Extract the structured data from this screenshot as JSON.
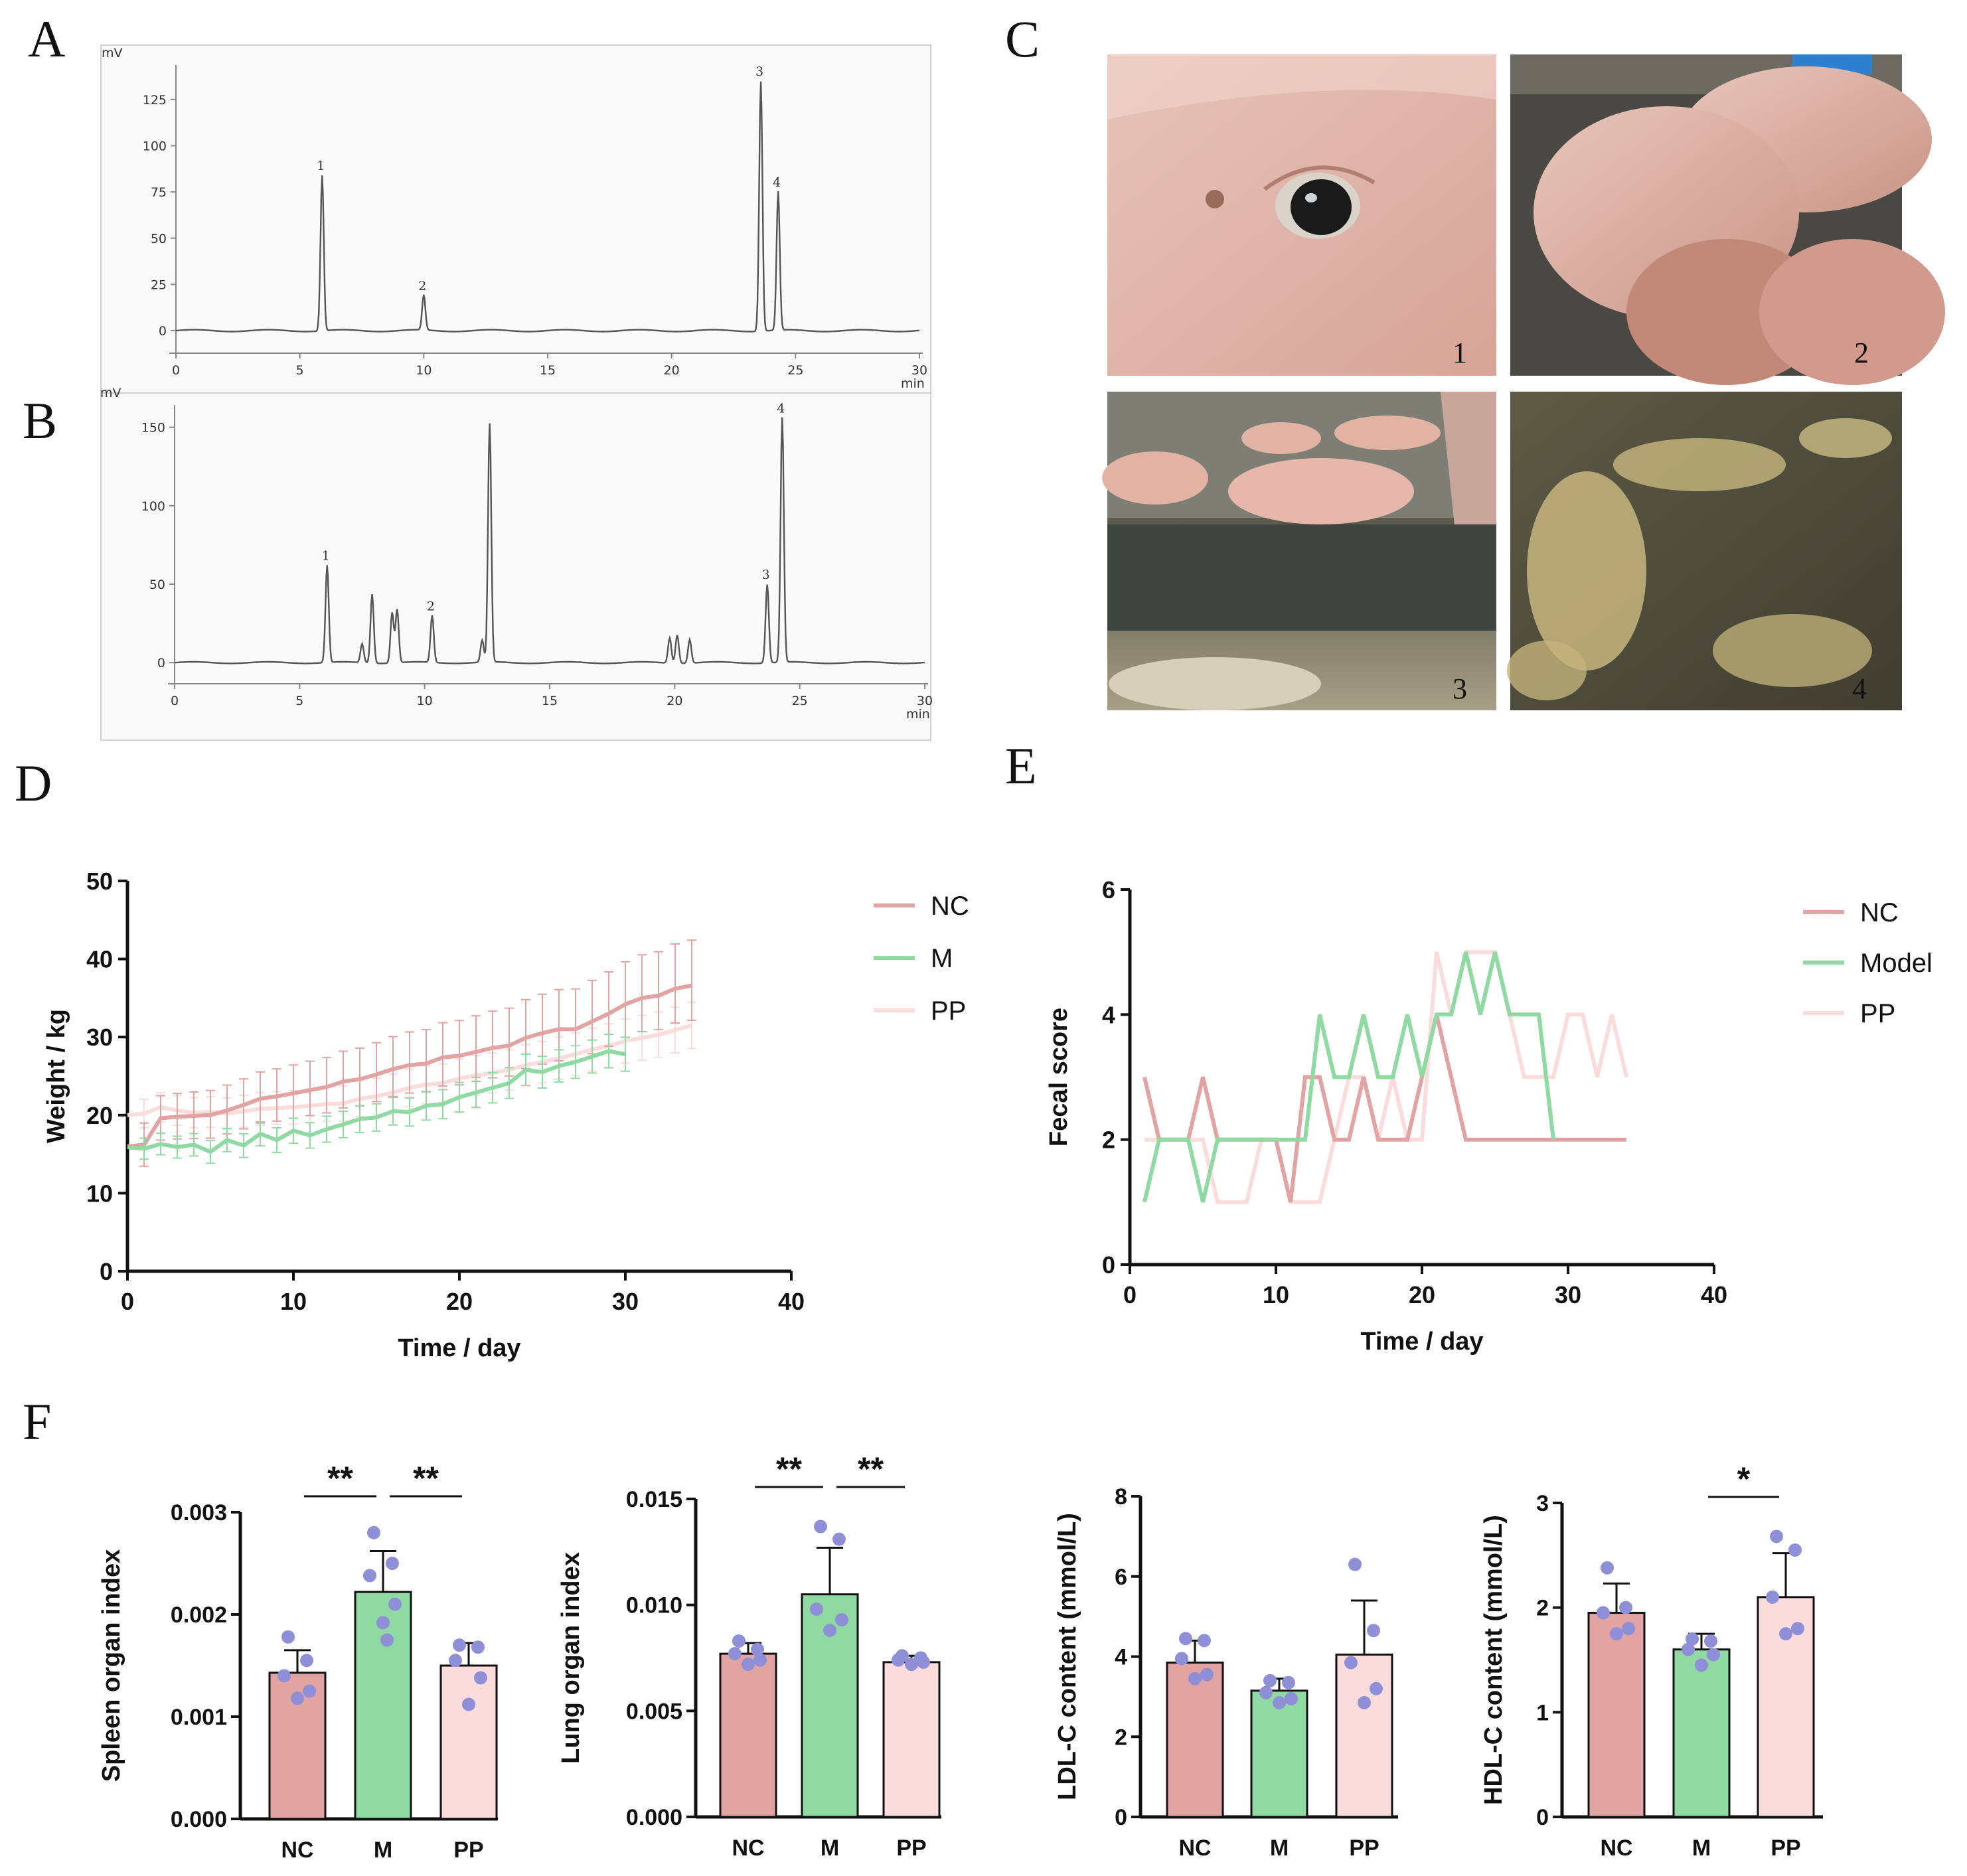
{
  "panels": {
    "A": "A",
    "B": "B",
    "C": "C",
    "D": "D",
    "E": "E",
    "F": "F"
  },
  "colors": {
    "NC": "#e2a3a3",
    "M": "#8fd9a3",
    "PP": "#fbdcdc",
    "dots": "#8f8fd8",
    "chrom": "#555555"
  },
  "photos": [
    {
      "label": "1",
      "description": "close-up of pig eye"
    },
    {
      "label": "2",
      "description": "pigs in pen"
    },
    {
      "label": "3",
      "description": "pigs lying in pen"
    },
    {
      "label": "4",
      "description": "feces on floor"
    }
  ],
  "chart_data": [
    {
      "id": "A",
      "type": "line",
      "title": "",
      "ylabel": "mV",
      "xlabel": "min",
      "xlim": [
        0,
        30
      ],
      "ylim": [
        -5,
        140
      ],
      "xticks": [
        "0",
        "5",
        "10",
        "15",
        "20",
        "25",
        "30"
      ],
      "yticks": [
        "0",
        "25",
        "50",
        "75",
        "100",
        "125"
      ],
      "peaks": [
        {
          "label": "1",
          "x": 5.9,
          "y": 84
        },
        {
          "label": "2",
          "x": 10.0,
          "y": 19
        },
        {
          "label": "3",
          "x": 23.6,
          "y": 135
        },
        {
          "label": "4",
          "x": 24.3,
          "y": 75
        }
      ]
    },
    {
      "id": "B",
      "type": "line",
      "title": "",
      "ylabel": "mV",
      "xlabel": "min",
      "xlim": [
        0,
        30
      ],
      "ylim": [
        -5,
        160
      ],
      "xticks": [
        "0",
        "5",
        "10",
        "15",
        "20",
        "25",
        "30"
      ],
      "yticks": [
        "0",
        "50",
        "100",
        "150"
      ],
      "peaks": [
        {
          "label": "1",
          "x": 6.1,
          "y": 62
        },
        {
          "label": "",
          "x": 7.5,
          "y": 12
        },
        {
          "label": "",
          "x": 7.9,
          "y": 44
        },
        {
          "label": "",
          "x": 8.7,
          "y": 32
        },
        {
          "label": "",
          "x": 8.9,
          "y": 34
        },
        {
          "label": "2",
          "x": 10.3,
          "y": 30
        },
        {
          "label": "",
          "x": 12.3,
          "y": 14
        },
        {
          "label": "",
          "x": 12.6,
          "y": 152
        },
        {
          "label": "",
          "x": 19.8,
          "y": 16
        },
        {
          "label": "",
          "x": 20.1,
          "y": 18
        },
        {
          "label": "",
          "x": 20.6,
          "y": 15
        },
        {
          "label": "3",
          "x": 23.7,
          "y": 50
        },
        {
          "label": "4",
          "x": 24.3,
          "y": 156
        }
      ]
    },
    {
      "id": "D",
      "type": "line",
      "xlabel": "Time / day",
      "ylabel": "Weight / kg",
      "xlim": [
        0,
        40
      ],
      "ylim": [
        0,
        50
      ],
      "xticks": [
        "0",
        "10",
        "20",
        "30",
        "40"
      ],
      "yticks": [
        "0",
        "10",
        "20",
        "30",
        "40",
        "50"
      ],
      "legend": [
        "NC",
        "M",
        "PP"
      ],
      "series": [
        {
          "name": "NC",
          "x": [
            0,
            1,
            2,
            3,
            4,
            5,
            6,
            7,
            8,
            9,
            10,
            11,
            12,
            13,
            14,
            15,
            16,
            17,
            18,
            19,
            20,
            21,
            22,
            23,
            24,
            25,
            26,
            27,
            28,
            29,
            30,
            31,
            32,
            33,
            34
          ],
          "values": [
            16.0,
            16.2,
            19.6,
            19.8,
            19.9,
            20.0,
            20.6,
            21.3,
            22.1,
            22.4,
            22.8,
            23.2,
            23.6,
            24.3,
            24.6,
            25.2,
            25.9,
            26.4,
            26.6,
            27.4,
            27.6,
            28.1,
            28.6,
            28.9,
            29.9,
            30.5,
            31.0,
            31.0,
            32.0,
            33.0,
            34.2,
            35.0,
            35.3,
            36.2,
            36.6
          ],
          "err": 4.5
        },
        {
          "name": "M",
          "x": [
            0,
            1,
            2,
            3,
            4,
            5,
            6,
            7,
            8,
            9,
            10,
            11,
            12,
            13,
            14,
            15,
            16,
            17,
            18,
            19,
            20,
            21,
            22,
            23,
            24,
            25,
            26,
            27,
            28,
            29,
            30
          ],
          "values": [
            15.9,
            15.7,
            16.3,
            15.9,
            16.2,
            15.3,
            16.8,
            16.1,
            17.6,
            16.8,
            18.0,
            17.4,
            18.2,
            18.8,
            19.5,
            19.7,
            20.5,
            20.4,
            21.2,
            21.4,
            22.3,
            22.9,
            23.5,
            24.1,
            25.8,
            25.5,
            26.3,
            26.8,
            27.5,
            28.2,
            27.8
          ],
          "err": 2.2
        },
        {
          "name": "PP",
          "x": [
            0,
            1,
            2,
            3,
            4,
            5,
            6,
            7,
            8,
            9,
            10,
            11,
            12,
            13,
            14,
            15,
            16,
            17,
            18,
            19,
            20,
            21,
            22,
            23,
            24,
            25,
            26,
            27,
            28,
            29,
            30,
            31,
            32,
            33,
            34
          ],
          "values": [
            20.0,
            20.2,
            21.0,
            20.6,
            20.3,
            20.4,
            20.2,
            20.5,
            20.8,
            20.9,
            21.0,
            21.2,
            21.4,
            21.5,
            22.1,
            22.4,
            22.9,
            23.5,
            23.9,
            24.1,
            24.7,
            25.1,
            25.4,
            25.8,
            26.4,
            26.8,
            27.3,
            27.8,
            28.4,
            28.9,
            29.5,
            29.9,
            30.3,
            30.9,
            31.5
          ],
          "err": 3.0
        }
      ]
    },
    {
      "id": "E",
      "type": "line",
      "xlabel": "Time / day",
      "ylabel": "Fecal score",
      "xlim": [
        0,
        40
      ],
      "ylim": [
        0,
        6
      ],
      "xticks": [
        "0",
        "10",
        "20",
        "30",
        "40"
      ],
      "yticks": [
        "0",
        "2",
        "4",
        "6"
      ],
      "legend": [
        "NC",
        "Model",
        "PP"
      ],
      "series": [
        {
          "name": "NC",
          "x": [
            1,
            2,
            3,
            4,
            5,
            6,
            7,
            8,
            9,
            10,
            11,
            12,
            13,
            14,
            15,
            16,
            17,
            18,
            19,
            20,
            21,
            22,
            23,
            24,
            25,
            26,
            27,
            28,
            29,
            30,
            31,
            32,
            33,
            34
          ],
          "values": [
            3,
            2,
            2,
            2,
            3,
            2,
            2,
            2,
            2,
            2,
            1,
            3,
            3,
            2,
            2,
            3,
            2,
            2,
            2,
            3,
            4,
            3,
            2,
            2,
            2,
            2,
            2,
            2,
            2,
            2,
            2,
            2,
            2,
            2
          ]
        },
        {
          "name": "Model",
          "x": [
            1,
            2,
            3,
            4,
            5,
            6,
            7,
            8,
            9,
            10,
            11,
            12,
            13,
            14,
            15,
            16,
            17,
            18,
            19,
            20,
            21,
            22,
            23,
            24,
            25,
            26,
            27,
            28,
            29
          ],
          "values": [
            1,
            2,
            2,
            2,
            1,
            2,
            2,
            2,
            2,
            2,
            2,
            2,
            4,
            3,
            3,
            4,
            3,
            3,
            4,
            3,
            4,
            4,
            5,
            4,
            5,
            4,
            4,
            4,
            2
          ]
        },
        {
          "name": "PP",
          "x": [
            1,
            2,
            3,
            4,
            5,
            6,
            7,
            8,
            9,
            10,
            11,
            12,
            13,
            14,
            15,
            16,
            17,
            18,
            19,
            20,
            21,
            22,
            23,
            24,
            25,
            26,
            27,
            28,
            29,
            30,
            31,
            32,
            33,
            34
          ],
          "values": [
            2,
            2,
            2,
            2,
            2,
            1,
            1,
            1,
            2,
            2,
            1,
            1,
            1,
            2,
            3,
            3,
            2,
            3,
            2,
            2,
            5,
            4,
            5,
            5,
            5,
            4,
            3,
            3,
            3,
            4,
            4,
            3,
            4,
            3
          ]
        }
      ]
    },
    {
      "id": "F1",
      "type": "bar",
      "ylabel": "Spleen organ index",
      "categories": [
        "NC",
        "M",
        "PP"
      ],
      "ylim": [
        0,
        0.003
      ],
      "yticks": [
        "0.000",
        "0.001",
        "0.002",
        "0.003"
      ],
      "values": [
        0.00143,
        0.00222,
        0.0015
      ],
      "sd": [
        0.00022,
        0.0004,
        0.00022
      ],
      "points": [
        [
          0.00178,
          0.00155,
          0.0014,
          0.00125,
          0.00118
        ],
        [
          0.0028,
          0.0025,
          0.00238,
          0.0021,
          0.00192,
          0.00175
        ],
        [
          0.0017,
          0.00168,
          0.00155,
          0.00138,
          0.00112
        ]
      ],
      "significance": [
        {
          "from": 0,
          "to": 1,
          "label": "**"
        },
        {
          "from": 1,
          "to": 2,
          "label": "**"
        }
      ]
    },
    {
      "id": "F2",
      "type": "bar",
      "ylabel": "Lung organ index",
      "categories": [
        "NC",
        "M",
        "PP"
      ],
      "ylim": [
        0,
        0.015
      ],
      "yticks": [
        "0.000",
        "0.005",
        "0.010",
        "0.015"
      ],
      "values": [
        0.0077,
        0.0105,
        0.0073
      ],
      "sd": [
        0.0005,
        0.0022,
        0.0003
      ],
      "points": [
        [
          0.0083,
          0.0079,
          0.0077,
          0.0074,
          0.0072
        ],
        [
          0.0137,
          0.0131,
          0.0098,
          0.0093,
          0.0088
        ],
        [
          0.0076,
          0.0075,
          0.0074,
          0.0073,
          0.0072
        ]
      ],
      "significance": [
        {
          "from": 0,
          "to": 1,
          "label": "**"
        },
        {
          "from": 1,
          "to": 2,
          "label": "**"
        }
      ]
    },
    {
      "id": "F3",
      "type": "bar",
      "ylabel": "LDL-C content (mmol/L)",
      "categories": [
        "NC",
        "M",
        "PP"
      ],
      "ylim": [
        0,
        8
      ],
      "yticks": [
        "0",
        "2",
        "4",
        "6",
        "8"
      ],
      "values": [
        3.85,
        3.15,
        4.05
      ],
      "sd": [
        0.55,
        0.3,
        1.35
      ],
      "points": [
        [
          4.45,
          4.4,
          3.95,
          3.55,
          3.45
        ],
        [
          3.4,
          3.35,
          3.1,
          2.95,
          2.85
        ],
        [
          6.3,
          4.65,
          3.85,
          3.2,
          2.85
        ]
      ],
      "significance": []
    },
    {
      "id": "F4",
      "type": "bar",
      "ylabel": "HDL-C content (mmol/L)",
      "categories": [
        "NC",
        "M",
        "PP"
      ],
      "ylim": [
        0,
        3
      ],
      "yticks": [
        "0",
        "1",
        "2",
        "3"
      ],
      "values": [
        1.95,
        1.6,
        2.1
      ],
      "sd": [
        0.28,
        0.15,
        0.42
      ],
      "points": [
        [
          2.38,
          2.0,
          1.95,
          1.8,
          1.75
        ],
        [
          1.7,
          1.68,
          1.6,
          1.55,
          1.45
        ],
        [
          2.68,
          2.55,
          2.1,
          1.8,
          1.75
        ]
      ],
      "significance": [
        {
          "from": 1,
          "to": 2,
          "label": "*"
        }
      ]
    }
  ]
}
